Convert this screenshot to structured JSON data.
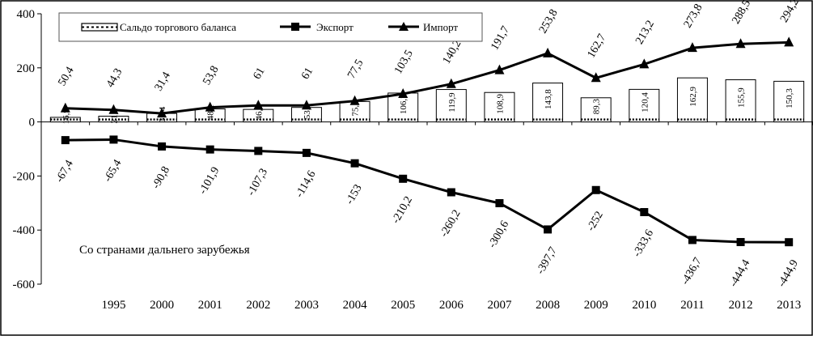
{
  "chart_data": {
    "type": "line",
    "categories": [
      "",
      "1995",
      "2000",
      "2001",
      "2002",
      "2003",
      "2004",
      "2005",
      "2006",
      "2007",
      "2008",
      "2009",
      "2010",
      "2011",
      "2012",
      "2013"
    ],
    "ylim": [
      -600,
      400
    ],
    "yticks": [
      400,
      200,
      0,
      -200,
      -400,
      -600
    ],
    "grid": false,
    "legend_position": "top",
    "series": [
      {
        "name": "Сальдо торгового баланса",
        "kind": "bar",
        "values": [
          16.9,
          21.2,
          31.4,
          48.1,
          46.3,
          53.6,
          75.5,
          106.7,
          119.9,
          108.9,
          143.8,
          89.3,
          120.4,
          162.9,
          155.9,
          150.3
        ],
        "labels": [
          "16,9",
          "21,2",
          "31,4",
          "48,1",
          "46,3",
          "53,6",
          "75,5",
          "106,7",
          "119,9",
          "108,9",
          "143,8",
          "89,3",
          "120,4",
          "162,9",
          "155,9",
          "150,3"
        ]
      },
      {
        "name": "Экспорт",
        "kind": "line",
        "marker": "square",
        "values": [
          -67.4,
          -65.4,
          -90.8,
          -101.9,
          -107.3,
          -114.6,
          -153,
          -210.2,
          -260.2,
          -300.6,
          -397.7,
          -252,
          -333.6,
          -436.7,
          -444.4,
          -444.9
        ],
        "labels": [
          "-67,4",
          "-65,4",
          "-90,8",
          "-101,9",
          "-107,3",
          "-114,6",
          "-153",
          "-210,2",
          "-260,2",
          "-300,6",
          "-397,7",
          "-252",
          "-333,6",
          "-436,7",
          "-444,4",
          "-444,9"
        ]
      },
      {
        "name": "Импорт",
        "kind": "line",
        "marker": "triangle",
        "values": [
          50.4,
          44.3,
          31.4,
          53.8,
          61,
          61,
          77.5,
          103.5,
          140.2,
          191.7,
          253.8,
          162.7,
          213.2,
          273.8,
          288.5,
          294.2
        ],
        "labels": [
          "50,4",
          "44,3",
          "31,4",
          "53,8",
          "61",
          "61",
          "77,5",
          "103,5",
          "140,2",
          "191,7",
          "253,8",
          "162,7",
          "213,2",
          "273,8",
          "288,5",
          "294,2"
        ]
      }
    ],
    "annotation": "Со странами дальнего  зарубежья"
  }
}
